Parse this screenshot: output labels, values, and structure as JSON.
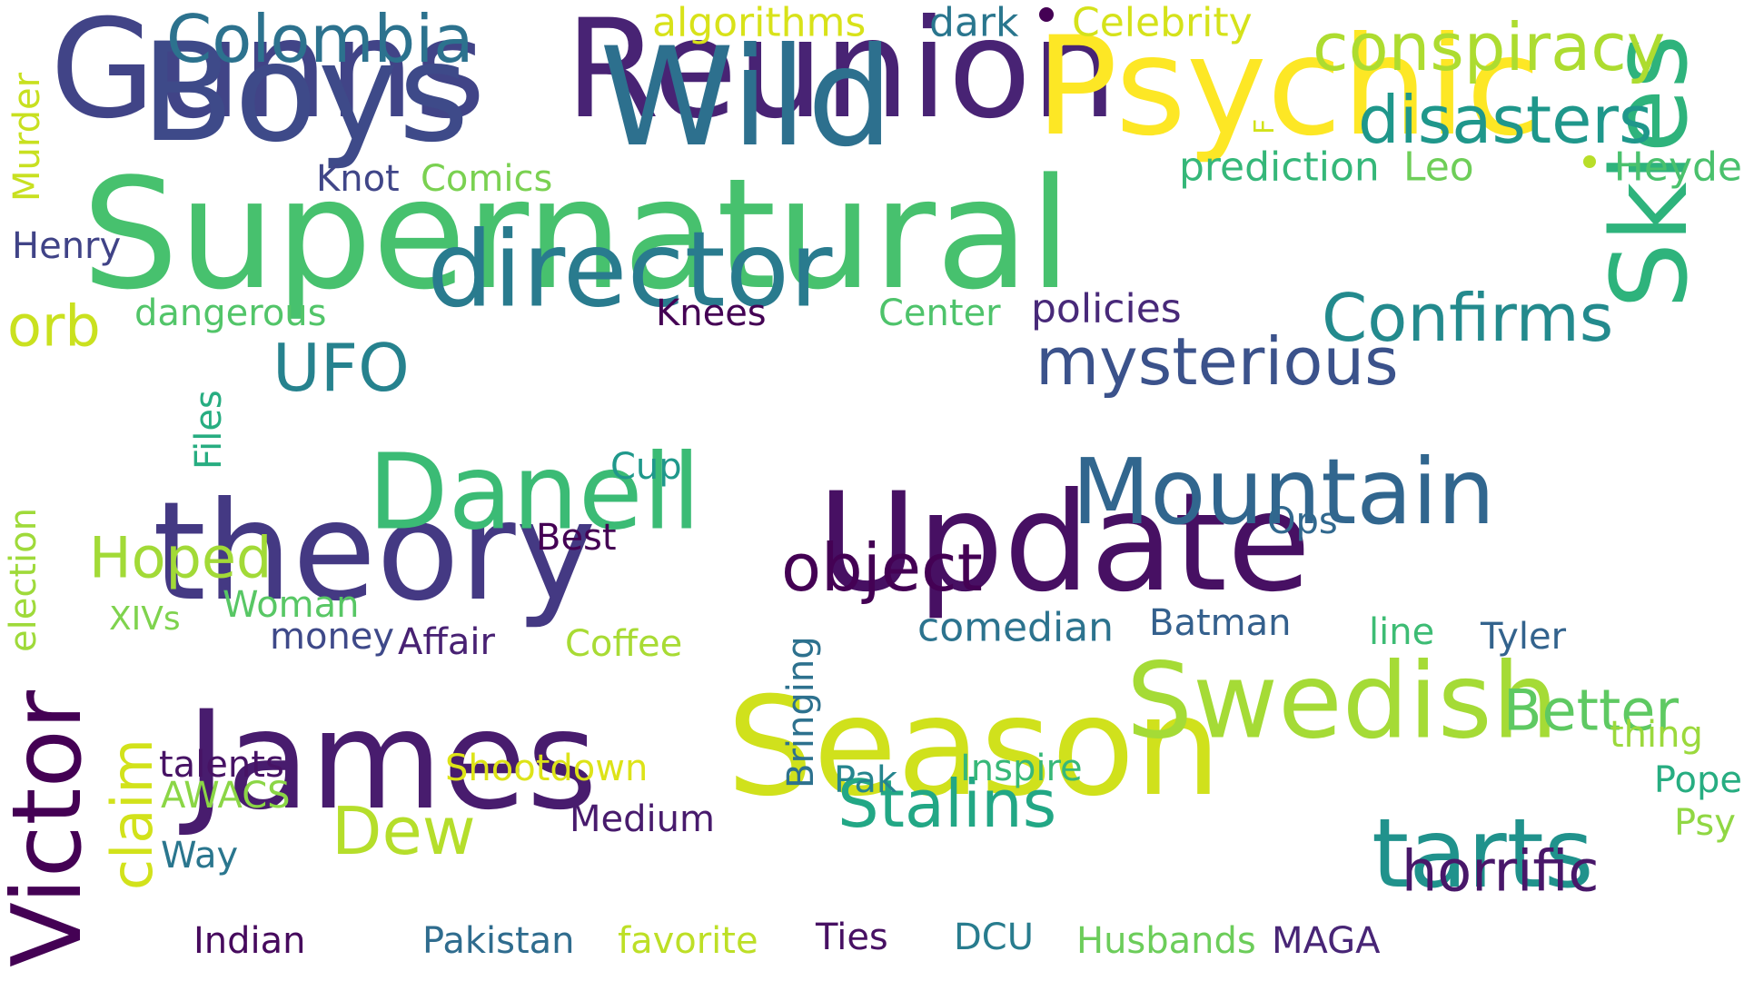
{
  "words": [
    {
      "text": "Supernatural",
      "color": "#47c16e"
    },
    {
      "text": "Reunion",
      "color": "#482374"
    },
    {
      "text": "Gunns",
      "color": "#414487"
    },
    {
      "text": "Boys",
      "color": "#3e4a89"
    },
    {
      "text": "Wild",
      "color": "#2d708e"
    },
    {
      "text": "Psychic",
      "color": "#fde725"
    },
    {
      "text": "theory",
      "color": "#443983"
    },
    {
      "text": "Update",
      "color": "#471063"
    },
    {
      "text": "James",
      "color": "#481c6e"
    },
    {
      "text": "Season",
      "color": "#d0e11c"
    },
    {
      "text": "Swedish",
      "color": "#a5db36"
    },
    {
      "text": "director",
      "color": "#297b8e"
    },
    {
      "text": "Mountain",
      "color": "#31668e"
    },
    {
      "text": "Danell",
      "color": "#3bbb75"
    },
    {
      "text": "Skies",
      "color": "#2eb37c"
    },
    {
      "text": "Victor",
      "color": "#440154"
    },
    {
      "text": "tarts",
      "color": "#20928c"
    },
    {
      "text": "conspiracy",
      "color": "#addc30"
    },
    {
      "text": "disasters",
      "color": "#1f978b"
    },
    {
      "text": "Colombia",
      "color": "#2c728e"
    },
    {
      "text": "Confirms",
      "color": "#238a8d"
    },
    {
      "text": "mysterious",
      "color": "#3b528b"
    },
    {
      "text": "object",
      "color": "#440154"
    },
    {
      "text": "Dew",
      "color": "#b5de2b"
    },
    {
      "text": "Hoped",
      "color": "#a2da37"
    },
    {
      "text": "Stalins",
      "color": "#22a785"
    },
    {
      "text": "horrific",
      "color": "#481769"
    },
    {
      "text": "Better",
      "color": "#5ec962"
    },
    {
      "text": "UFO",
      "color": "#26828e"
    },
    {
      "text": "orb",
      "color": "#cae11f"
    },
    {
      "text": "claim",
      "color": "#d2e21b"
    },
    {
      "text": "prediction",
      "color": "#35b779"
    },
    {
      "text": "Leo",
      "color": "#6ece58"
    },
    {
      "text": "Heyde",
      "color": "#4ac16d"
    },
    {
      "text": "algorithms",
      "color": "#d8e219"
    },
    {
      "text": "dark",
      "color": "#2a768e"
    },
    {
      "text": "Celebrity",
      "color": "#d5e21a"
    },
    {
      "text": "Knot",
      "color": "#404688"
    },
    {
      "text": "Comics",
      "color": "#7ad151"
    },
    {
      "text": "Henry",
      "color": "#404387"
    },
    {
      "text": "Murder",
      "color": "#c8e020"
    },
    {
      "text": "dangerous",
      "color": "#52c569"
    },
    {
      "text": "Knees",
      "color": "#440154"
    },
    {
      "text": "Center",
      "color": "#4ec36b"
    },
    {
      "text": "policies",
      "color": "#482979"
    },
    {
      "text": "Files",
      "color": "#27ad81"
    },
    {
      "text": "election",
      "color": "#9fda3a"
    },
    {
      "text": "Cup",
      "color": "#1f988b"
    },
    {
      "text": "Ops",
      "color": "#31688e"
    },
    {
      "text": "Best",
      "color": "#440154"
    },
    {
      "text": "XIVs",
      "color": "#7fd34e"
    },
    {
      "text": "Woman",
      "color": "#58c765"
    },
    {
      "text": "money",
      "color": "#3e4989"
    },
    {
      "text": "Affair",
      "color": "#482173"
    },
    {
      "text": "Coffee",
      "color": "#a8db34"
    },
    {
      "text": "Bringing",
      "color": "#2d718e"
    },
    {
      "text": "comedian",
      "color": "#2c738e"
    },
    {
      "text": "Batman",
      "color": "#34608d"
    },
    {
      "text": "line",
      "color": "#3dbc74"
    },
    {
      "text": "Tyler",
      "color": "#33638d"
    },
    {
      "text": "thing",
      "color": "#9bd93c"
    },
    {
      "text": "talents",
      "color": "#471365"
    },
    {
      "text": "Shootdown",
      "color": "#dde318"
    },
    {
      "text": "Pak",
      "color": "#25858e"
    },
    {
      "text": "Inspire",
      "color": "#37b878"
    },
    {
      "text": "AWACS",
      "color": "#8bd646"
    },
    {
      "text": "Pope",
      "color": "#27ad81"
    },
    {
      "text": "Medium",
      "color": "#481b6d"
    },
    {
      "text": "Psy",
      "color": "#90d743"
    },
    {
      "text": "Way",
      "color": "#2a768e"
    },
    {
      "text": "Indian",
      "color": "#460a5d"
    },
    {
      "text": "Pakistan",
      "color": "#2f6c8e"
    },
    {
      "text": "favorite",
      "color": "#bddf26"
    },
    {
      "text": "Ties",
      "color": "#471063"
    },
    {
      "text": "DCU",
      "color": "#287c8e"
    },
    {
      "text": "Husbands",
      "color": "#6ccd5a"
    },
    {
      "text": "MAGA",
      "color": "#482576"
    },
    {
      "text": "F",
      "color": "#d2e21b"
    }
  ]
}
